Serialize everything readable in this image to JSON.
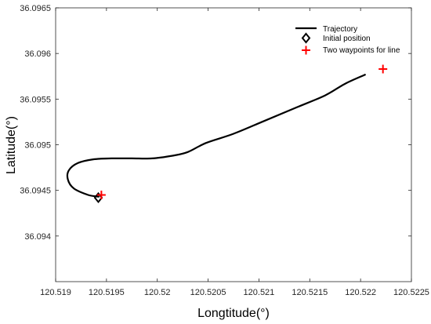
{
  "chart_data": {
    "type": "line",
    "title": "",
    "xlabel": "Longtitude(°)",
    "ylabel": "Latitude(°)",
    "xlim": [
      120.519,
      120.5225
    ],
    "ylim": [
      36.0935,
      36.0965
    ],
    "xticks": [
      120.519,
      120.5195,
      120.52,
      120.5205,
      120.521,
      120.5215,
      120.522,
      120.5225
    ],
    "xtick_labels": [
      "120.519",
      "120.5195",
      "120.52",
      "120.5205",
      "120.521",
      "120.5215",
      "120.522",
      "120.5225"
    ],
    "yticks": [
      36.094,
      36.0945,
      36.095,
      36.0955,
      36.096,
      36.0965
    ],
    "ytick_labels": [
      "36.094",
      "36.0945",
      "36.095",
      "36.0955",
      "36.096",
      "36.0965"
    ],
    "grid": false,
    "legend_position": "top-right",
    "series": [
      {
        "name": "Trajectory",
        "color": "#000000",
        "marker": "none",
        "x": [
          120.51943,
          120.51932,
          120.51918,
          120.51912,
          120.51913,
          120.51922,
          120.51937,
          120.51955,
          120.51975,
          120.51995,
          120.52015,
          120.5203,
          120.52048,
          120.52075,
          120.52105,
          120.52135,
          120.52165,
          120.52185,
          120.52205
        ],
        "y": [
          36.09443,
          36.09445,
          36.09452,
          36.09462,
          36.09472,
          36.0948,
          36.09484,
          36.09485,
          36.09485,
          36.09485,
          36.09488,
          36.09492,
          36.09502,
          36.09512,
          36.09526,
          36.0954,
          36.09554,
          36.09567,
          36.09577
        ]
      },
      {
        "name": "Initial position",
        "color": "#000000",
        "marker": "diamond",
        "x": [
          120.51942
        ],
        "y": [
          36.09442
        ]
      },
      {
        "name": "Two waypoints for line",
        "color": "#ff0000",
        "marker": "plus",
        "x": [
          120.51945,
          120.52222
        ],
        "y": [
          36.09445,
          36.09583
        ]
      }
    ]
  }
}
